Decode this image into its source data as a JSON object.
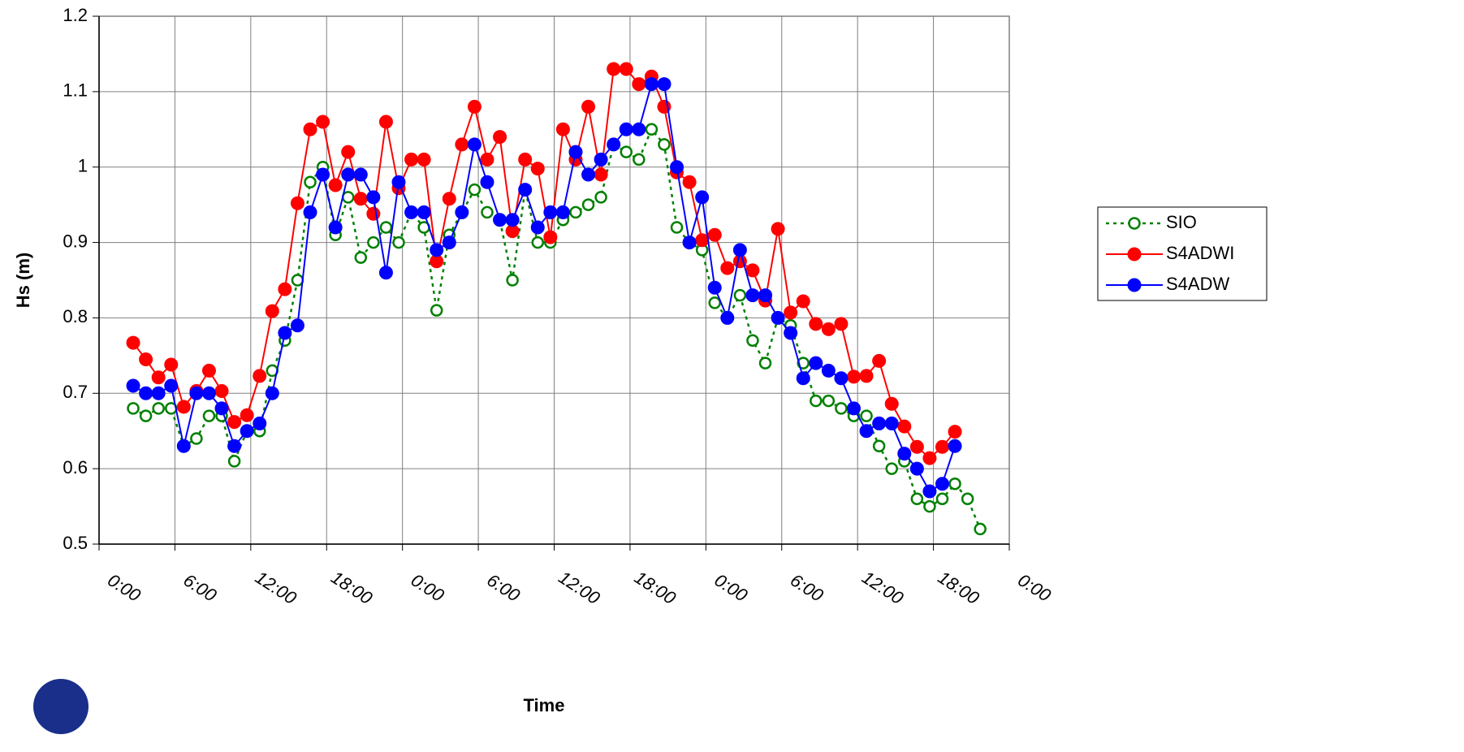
{
  "chart_data": {
    "type": "line",
    "x_label": "Time",
    "y_label": "Hs (m)",
    "x": [
      2.7,
      3.7,
      4.7,
      5.7,
      6.7,
      7.7,
      8.7,
      9.7,
      10.7,
      11.7,
      12.7,
      13.7,
      14.7,
      15.7,
      16.7,
      17.7,
      18.7,
      19.7,
      20.7,
      21.7,
      22.7,
      23.7,
      24.7,
      25.7,
      26.7,
      27.7,
      28.7,
      29.7,
      30.7,
      31.7,
      32.7,
      33.7,
      34.7,
      35.7,
      36.7,
      37.7,
      38.7,
      39.7,
      40.7,
      41.7,
      42.7,
      43.7,
      44.7,
      45.7,
      46.7,
      47.7,
      48.7,
      49.7,
      50.7,
      51.7,
      52.7,
      53.7,
      54.7,
      55.7,
      56.7,
      57.7,
      58.7,
      59.7,
      60.7,
      61.7,
      62.7,
      63.7,
      64.7,
      65.7,
      66.7,
      67.7,
      68.7,
      69.7
    ],
    "series": [
      {
        "name": "SIO",
        "color": "#008000",
        "style": "dotted",
        "marker": "open",
        "values": [
          0.68,
          0.67,
          0.68,
          0.68,
          0.63,
          0.64,
          0.67,
          0.67,
          0.61,
          0.65,
          0.65,
          0.73,
          0.77,
          0.85,
          0.98,
          1.0,
          0.91,
          0.96,
          0.88,
          0.9,
          0.92,
          0.9,
          0.94,
          0.92,
          0.81,
          0.91,
          0.94,
          0.97,
          0.94,
          0.93,
          0.85,
          0.97,
          0.9,
          0.9,
          0.93,
          0.94,
          0.95,
          0.96,
          1.03,
          1.02,
          1.01,
          1.05,
          1.03,
          0.92,
          0.9,
          0.89,
          0.82,
          0.8,
          0.83,
          0.77,
          0.74,
          0.8,
          0.79,
          0.74,
          0.69,
          0.69,
          0.68,
          0.67,
          0.67,
          0.63,
          0.6,
          0.61,
          0.56,
          0.55,
          0.56,
          0.58,
          0.56,
          0.52
        ]
      },
      {
        "name": "S4ADWI",
        "color": "#ff0000",
        "style": "solid",
        "marker": "filled",
        "values": [
          0.767,
          0.745,
          0.721,
          0.738,
          0.682,
          0.703,
          0.73,
          0.703,
          0.662,
          0.671,
          0.723,
          0.809,
          0.838,
          0.952,
          1.05,
          1.06,
          0.976,
          1.02,
          0.958,
          0.938,
          1.06,
          0.972,
          1.01,
          1.01,
          0.875,
          0.958,
          1.03,
          1.08,
          1.01,
          1.04,
          0.915,
          1.01,
          0.998,
          0.907,
          1.05,
          1.01,
          1.08,
          0.99,
          1.13,
          1.13,
          1.11,
          1.12,
          1.08,
          0.993,
          0.98,
          0.903,
          0.91,
          0.866,
          0.875,
          0.863,
          0.823,
          0.918,
          0.807,
          0.822,
          0.792,
          0.785,
          0.792,
          0.722,
          0.723,
          0.743,
          0.686,
          0.656,
          0.629,
          0.614,
          0.629,
          0.649,
          null,
          null
        ]
      },
      {
        "name": "S4ADW",
        "color": "#0000ff",
        "style": "solid",
        "marker": "filled",
        "values": [
          0.71,
          0.7,
          0.7,
          0.71,
          0.63,
          0.7,
          0.7,
          0.68,
          0.63,
          0.65,
          0.66,
          0.7,
          0.78,
          0.79,
          0.94,
          0.99,
          0.92,
          0.99,
          0.99,
          0.96,
          0.86,
          0.98,
          0.94,
          0.94,
          0.89,
          0.9,
          0.94,
          1.03,
          0.98,
          0.93,
          0.93,
          0.97,
          0.92,
          0.94,
          0.94,
          1.02,
          0.99,
          1.01,
          1.03,
          1.05,
          1.05,
          1.11,
          1.11,
          1.0,
          0.9,
          0.96,
          0.84,
          0.8,
          0.89,
          0.83,
          0.83,
          0.8,
          0.78,
          0.72,
          0.74,
          0.73,
          0.72,
          0.68,
          0.65,
          0.66,
          0.66,
          0.62,
          0.6,
          0.57,
          0.58,
          0.63,
          null,
          null
        ]
      }
    ],
    "xlim": [
      0,
      72
    ],
    "xticks": [
      {
        "value": 0,
        "label": "0:00"
      },
      {
        "value": 6,
        "label": "6:00"
      },
      {
        "value": 12,
        "label": "12:00"
      },
      {
        "value": 18,
        "label": "18:00"
      },
      {
        "value": 24,
        "label": "0:00"
      },
      {
        "value": 30,
        "label": "6:00"
      },
      {
        "value": 36,
        "label": "12:00"
      },
      {
        "value": 42,
        "label": "18:00"
      },
      {
        "value": 48,
        "label": "0:00"
      },
      {
        "value": 54,
        "label": "6:00"
      },
      {
        "value": 60,
        "label": "12:00"
      },
      {
        "value": 66,
        "label": "18:00"
      },
      {
        "value": 72,
        "label": "0:00"
      }
    ],
    "ylim": [
      0.5,
      1.2
    ],
    "yticks": [
      0.5,
      0.6,
      0.7,
      0.8,
      0.9,
      1,
      1.1,
      1.2
    ],
    "grid": true,
    "legend": "right"
  }
}
